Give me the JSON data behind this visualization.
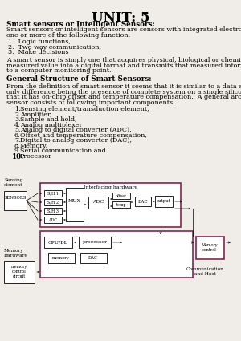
{
  "bg_color": "#f0ede8",
  "title": "UNIT: 5",
  "title_fontsize": 12,
  "body_fontsize": 5.8,
  "heading_fontsize": 6.3,
  "diagram_color": "#8B2252",
  "list_items": [
    "Sensing element/transduction element,",
    "Amplifier,",
    "Sample and hold,",
    "Analog multiplexer",
    "Analog to digital converter (ADC),",
    "Offset and temperature compensation,",
    "Digital to analog converter (DAC),",
    "Memory,",
    "Serial communication and"
  ]
}
